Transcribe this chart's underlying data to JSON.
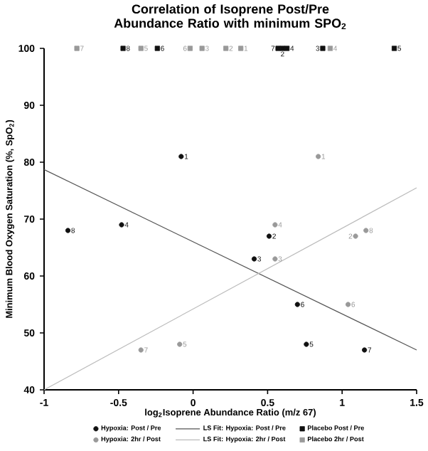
{
  "chart_data": {
    "type": "scatter",
    "title": "Correlation of Isoprene Post/Pre Abundance Ratio with minimum SPO$_{2}$",
    "xlabel": "log$_{2}$Isoprene Abundance Ratio (m/z 67)",
    "ylabel": "Minimum Blood Oxygen Saturation (%, SpO$_{2}$)",
    "xlim": [
      -1,
      1.5
    ],
    "xticks": [
      -1,
      -0.5,
      0,
      0.5,
      1,
      1.5
    ],
    "ylim": [
      40,
      100
    ],
    "yticks": [
      40,
      50,
      60,
      70,
      80,
      90,
      100
    ],
    "grid": false,
    "legend": "bottom",
    "series": [
      {
        "name": "Hypoxia: Post / Pre",
        "marker": "circle",
        "color": "#111111",
        "x": [
          -0.08,
          0.51,
          0.41,
          -0.48,
          0.76,
          0.7,
          1.15,
          -0.84
        ],
        "values": [
          81,
          67,
          63,
          69,
          48,
          55,
          47,
          68
        ]
      },
      {
        "name": "Hypoxia: 2hr / Post",
        "marker": "circle",
        "color": "#999999",
        "x": [
          0.84,
          1.09,
          0.55,
          0.55,
          -0.09,
          1.04,
          -0.35,
          1.16
        ],
        "values": [
          81,
          67,
          63,
          69,
          48,
          55,
          47,
          68
        ]
      },
      {
        "name": "LS Fit: Hypoxia: Post / Pre",
        "type": "line",
        "marker": "none",
        "color": "#555555",
        "x": [
          -1,
          1.5
        ],
        "values": [
          78.7,
          47
        ]
      },
      {
        "name": "LS Fit: Hypoxia: 2hr / Post",
        "type": "line",
        "marker": "none",
        "color": "#bbbbbb",
        "x": [
          -1,
          1.5
        ],
        "values": [
          40,
          75.5
        ]
      },
      {
        "name": "Placebo Post / Pre",
        "marker": "square",
        "color": "#111111",
        "x": [
          0.6,
          0.87,
          0.63,
          1.35,
          -0.24,
          0.57,
          -0.47
        ],
        "values": [
          100,
          100,
          100,
          100,
          100,
          100,
          100
        ]
      },
      {
        "name": "Placebo 2hr / Post",
        "marker": "square",
        "color": "#999999",
        "x": [
          0.32,
          0.22,
          0.06,
          0.92,
          -0.35,
          -0.02,
          -0.78
        ],
        "values": [
          100,
          100,
          100,
          100,
          100,
          100,
          100
        ]
      }
    ],
    "annotations": [
      {
        "text": "1",
        "x": -0.08,
        "y": 81
      },
      {
        "text": "2",
        "x": 0.51,
        "y": 67
      },
      {
        "text": "3",
        "x": 0.41,
        "y": 63
      },
      {
        "text": "4",
        "x": -0.48,
        "y": 69
      },
      {
        "text": "5",
        "x": 0.76,
        "y": 48
      },
      {
        "text": "6",
        "x": 0.7,
        "y": 55
      },
      {
        "text": "7",
        "x": 1.15,
        "y": 47
      },
      {
        "text": "8",
        "x": -0.84,
        "y": 68
      },
      {
        "text": "1",
        "x": 0.84,
        "y": 81
      },
      {
        "text": "2",
        "x": 1.09,
        "y": 67
      },
      {
        "text": "3",
        "x": 0.55,
        "y": 63
      },
      {
        "text": "4",
        "x": 0.55,
        "y": 69
      },
      {
        "text": "5",
        "x": -0.09,
        "y": 48
      },
      {
        "text": "6",
        "x": 1.04,
        "y": 55
      },
      {
        "text": "7",
        "x": -0.35,
        "y": 47
      },
      {
        "text": "8",
        "x": 1.16,
        "y": 68
      },
      {
        "text": "2",
        "x": 0.6,
        "y": 100
      },
      {
        "text": "3",
        "x": 0.87,
        "y": 100
      },
      {
        "text": "4",
        "x": 0.63,
        "y": 100
      },
      {
        "text": "5",
        "x": 1.35,
        "y": 100
      },
      {
        "text": "6",
        "x": -0.24,
        "y": 100
      },
      {
        "text": "7",
        "x": 0.57,
        "y": 100
      },
      {
        "text": "8",
        "x": -0.47,
        "y": 100
      },
      {
        "text": "1",
        "x": 0.32,
        "y": 100
      },
      {
        "text": "2",
        "x": 0.22,
        "y": 100
      },
      {
        "text": "3",
        "x": 0.06,
        "y": 100
      },
      {
        "text": "4",
        "x": 0.92,
        "y": 100
      },
      {
        "text": "5",
        "x": -0.35,
        "y": 100
      },
      {
        "text": "6",
        "x": -0.02,
        "y": 100
      },
      {
        "text": "7",
        "x": -0.78,
        "y": 100
      }
    ]
  }
}
